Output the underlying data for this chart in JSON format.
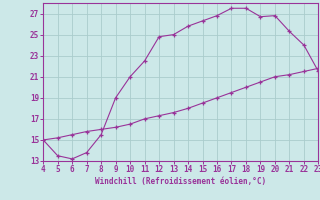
{
  "xlabel": "Windchill (Refroidissement éolien,°C)",
  "background_color": "#cce8e8",
  "grid_color": "#aacccc",
  "line_color": "#993399",
  "xlim": [
    4,
    23
  ],
  "ylim": [
    13,
    28
  ],
  "xticks": [
    4,
    5,
    6,
    7,
    8,
    9,
    10,
    11,
    12,
    13,
    14,
    15,
    16,
    17,
    18,
    19,
    20,
    21,
    22,
    23
  ],
  "yticks": [
    13,
    15,
    17,
    19,
    21,
    23,
    25,
    27
  ],
  "curve1_x": [
    4,
    5,
    6,
    7,
    8,
    9,
    10,
    11,
    12,
    13,
    14,
    15,
    16,
    17,
    18,
    19,
    20,
    21,
    22,
    23
  ],
  "curve1_y": [
    15.0,
    13.5,
    13.2,
    13.8,
    15.5,
    19.0,
    21.0,
    22.5,
    24.8,
    25.0,
    25.8,
    26.3,
    26.8,
    27.5,
    27.5,
    26.7,
    26.8,
    25.3,
    24.0,
    21.5
  ],
  "curve2_x": [
    4,
    5,
    6,
    7,
    8,
    9,
    10,
    11,
    12,
    13,
    14,
    15,
    16,
    17,
    18,
    19,
    20,
    21,
    22,
    23
  ],
  "curve2_y": [
    15.0,
    15.2,
    15.5,
    15.8,
    16.0,
    16.2,
    16.5,
    17.0,
    17.3,
    17.6,
    18.0,
    18.5,
    19.0,
    19.5,
    20.0,
    20.5,
    21.0,
    21.2,
    21.5,
    21.8
  ],
  "tick_fontsize": 5.5,
  "xlabel_fontsize": 5.5
}
